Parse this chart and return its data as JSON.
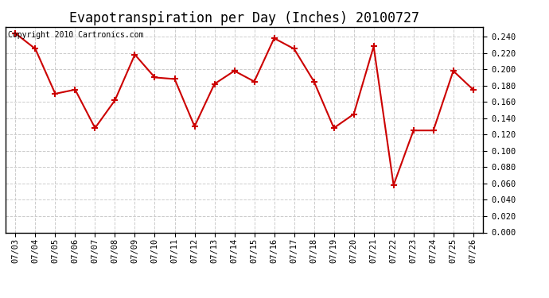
{
  "title": "Evapotranspiration per Day (Inches) 20100727",
  "copyright_text": "Copyright 2010 Cartronics.com",
  "dates": [
    "07/03",
    "07/04",
    "07/05",
    "07/06",
    "07/07",
    "07/08",
    "07/09",
    "07/10",
    "07/11",
    "07/12",
    "07/13",
    "07/14",
    "07/15",
    "07/16",
    "07/17",
    "07/18",
    "07/19",
    "07/20",
    "07/21",
    "07/22",
    "07/23",
    "07/24",
    "07/25",
    "07/26"
  ],
  "values": [
    0.244,
    0.225,
    0.17,
    0.175,
    0.128,
    0.162,
    0.218,
    0.19,
    0.188,
    0.13,
    0.182,
    0.198,
    0.185,
    0.238,
    0.225,
    0.185,
    0.128,
    0.145,
    0.228,
    0.058,
    0.125,
    0.125,
    0.198,
    0.175
  ],
  "line_color": "#cc0000",
  "marker": "+",
  "marker_size": 6,
  "marker_linewidth": 1.5,
  "line_width": 1.5,
  "ylim": [
    0.0,
    0.252
  ],
  "yticks": [
    0.0,
    0.02,
    0.04,
    0.06,
    0.08,
    0.1,
    0.12,
    0.14,
    0.16,
    0.18,
    0.2,
    0.22,
    0.24
  ],
  "bg_color": "#ffffff",
  "grid_color": "#cccccc",
  "title_fontsize": 12,
  "tick_fontsize": 7.5,
  "copyright_fontsize": 7
}
